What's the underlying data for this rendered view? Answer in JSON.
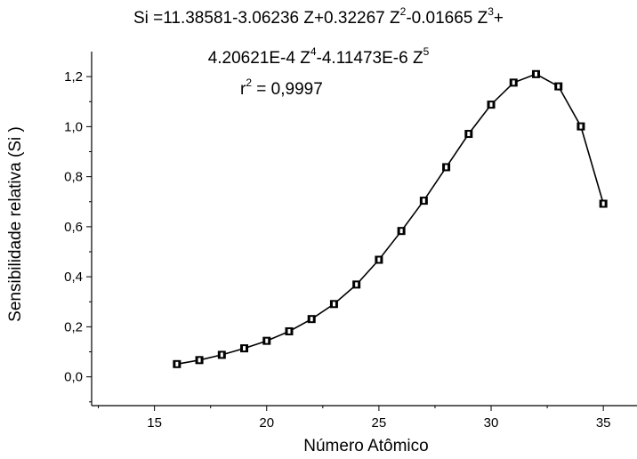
{
  "equation": {
    "line1_a": "Si =11.38581-3.06236 Z+0.32267 Z",
    "line1_exp1": "2",
    "line1_b": "-0.01665 Z",
    "line1_exp2": "3",
    "line1_c": "+",
    "line2_a": "4.20621E-4 Z",
    "line2_exp1": "4",
    "line2_b": "-4.11473E-6 Z",
    "line2_exp2": "5",
    "r2_a": "r",
    "r2_exp": "2",
    "r2_b": " = 0,9997"
  },
  "chart_data": {
    "type": "line",
    "title": "",
    "xlabel": "Número Atômico",
    "ylabel": "Sensibilidade relativa (Si )",
    "xlim": [
      12.2,
      36.5
    ],
    "ylim": [
      -0.115,
      1.3
    ],
    "xticks": [
      15,
      20,
      25,
      30,
      35
    ],
    "xtick_labels": [
      "15",
      "20",
      "25",
      "30",
      "35"
    ],
    "yticks": [
      0.0,
      0.2,
      0.4,
      0.6,
      0.8,
      1.0,
      1.2
    ],
    "ytick_labels": [
      "0,0",
      "0,2",
      "0,4",
      "0,6",
      "0,8",
      "1,0",
      "1,2"
    ],
    "grid": false,
    "marker": "square",
    "color": "#000000",
    "series": [
      {
        "x": [
          16,
          17,
          18,
          19,
          20,
          21,
          22,
          23,
          24,
          25,
          26,
          27,
          28,
          29,
          30,
          31,
          32,
          33,
          34,
          35
        ],
        "y": [
          0.051,
          0.067,
          0.088,
          0.114,
          0.144,
          0.182,
          0.231,
          0.291,
          0.369,
          0.468,
          0.583,
          0.704,
          0.838,
          0.971,
          1.088,
          1.176,
          1.21,
          1.161,
          1.001,
          0.692
        ]
      }
    ]
  }
}
